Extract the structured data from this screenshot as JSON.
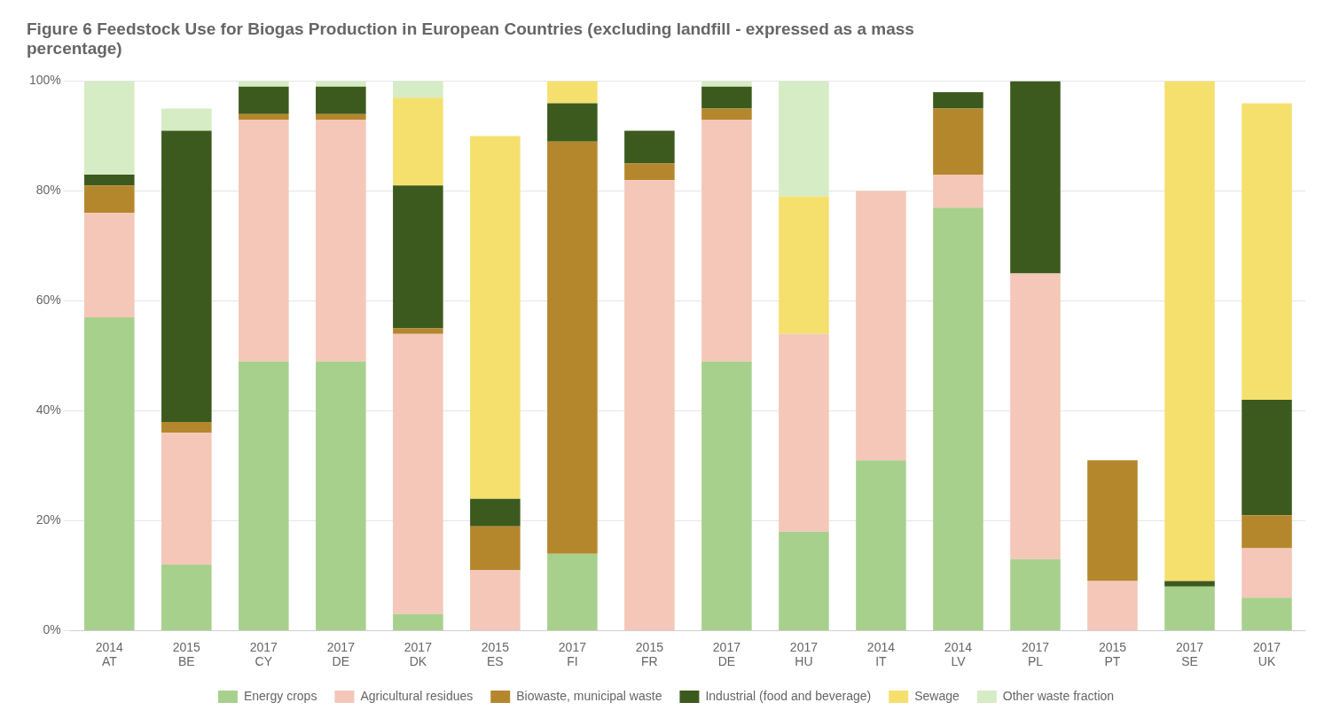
{
  "chart_data": {
    "type": "bar",
    "title": [
      "Figure 6 Feedstock Use for Biogas Production in European Countries (excluding landfill - expressed as a mass",
      "percentage)"
    ],
    "categories": [
      [
        "2014",
        "AT"
      ],
      [
        "2015",
        "BE"
      ],
      [
        "2017",
        "CY"
      ],
      [
        "2017",
        "DE"
      ],
      [
        "2017",
        "DK"
      ],
      [
        "2015",
        "ES"
      ],
      [
        "2017",
        "FI"
      ],
      [
        "2015",
        "FR"
      ],
      [
        "2017",
        "DE"
      ],
      [
        "2017",
        "HU"
      ],
      [
        "2014",
        "IT"
      ],
      [
        "2014",
        "LV"
      ],
      [
        "2017",
        "PL"
      ],
      [
        "2015",
        "PT"
      ],
      [
        "2017",
        "SE"
      ],
      [
        "2017",
        "UK"
      ]
    ],
    "series": [
      {
        "name": "Energy crops",
        "color": "#a8d08d",
        "values": [
          57,
          12,
          49,
          49,
          3,
          0,
          14,
          0,
          49,
          18,
          31,
          77,
          13,
          0,
          8,
          6
        ]
      },
      {
        "name": "Agricultural residues",
        "color": "#f4c7b8",
        "values": [
          19,
          24,
          44,
          44,
          51,
          11,
          0,
          82,
          44,
          36,
          49,
          6,
          52,
          9,
          0,
          9
        ]
      },
      {
        "name": "Biowaste, municipal waste",
        "color": "#b5872c",
        "values": [
          5,
          2,
          1,
          1,
          1,
          8,
          75,
          3,
          2,
          0,
          0,
          12,
          0,
          22,
          0,
          6
        ]
      },
      {
        "name": "Industrial (food and beverage)",
        "color": "#3d5a1e",
        "values": [
          2,
          53,
          5,
          5,
          26,
          5,
          7,
          6,
          4,
          0,
          0,
          3,
          35,
          0,
          1,
          21
        ]
      },
      {
        "name": "Sewage",
        "color": "#f5e06e",
        "values": [
          0,
          0,
          0,
          0,
          16,
          66,
          4,
          0,
          0,
          25,
          0,
          0,
          0,
          0,
          91,
          54
        ]
      },
      {
        "name": "Other waste fraction",
        "color": "#d6ecc4",
        "values": [
          17,
          4,
          1,
          1,
          3,
          0,
          0,
          0,
          1,
          21,
          0,
          0,
          0,
          0,
          0,
          0
        ]
      }
    ],
    "ylim": [
      0,
      100
    ],
    "yticks": [
      {
        "value": 0,
        "label": "0%"
      },
      {
        "value": 20,
        "label": "20%"
      },
      {
        "value": 40,
        "label": "40%"
      },
      {
        "value": 60,
        "label": "60%"
      },
      {
        "value": 80,
        "label": "80%"
      },
      {
        "value": 100,
        "label": "100%"
      }
    ],
    "grid": true,
    "stacked": true,
    "legend": "bottom"
  }
}
